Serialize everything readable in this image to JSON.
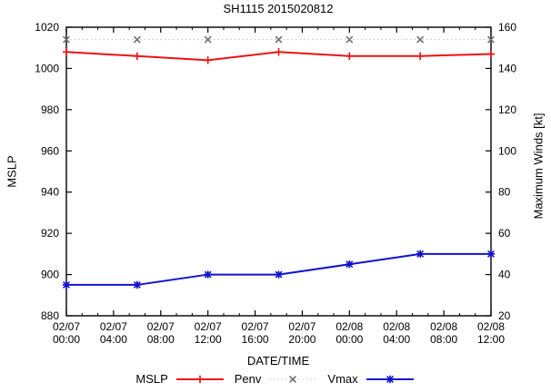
{
  "chart_data": {
    "type": "line",
    "title": "SH1115 2015020812",
    "xlabel": "DATE/TIME",
    "ylabel_left": "MSLP",
    "ylabel_right": "Maximum Winds [kt]",
    "grid": false,
    "legend_position": "bottom-center",
    "x_range_hours": [
      0,
      36
    ],
    "ylim_left": [
      880,
      1020
    ],
    "ylim_right": [
      20,
      160
    ],
    "yticks_left": [
      880,
      900,
      920,
      940,
      960,
      980,
      1000,
      1020
    ],
    "yticks_right": [
      20,
      40,
      60,
      80,
      100,
      120,
      140,
      160
    ],
    "x_ticks": {
      "hours": [
        0,
        4,
        8,
        12,
        16,
        20,
        24,
        28,
        32,
        36
      ],
      "labels": [
        [
          "02/07",
          "00:00"
        ],
        [
          "02/07",
          "04:00"
        ],
        [
          "02/07",
          "08:00"
        ],
        [
          "02/07",
          "12:00"
        ],
        [
          "02/07",
          "16:00"
        ],
        [
          "02/07",
          "20:00"
        ],
        [
          "02/08",
          "00:00"
        ],
        [
          "02/08",
          "04:00"
        ],
        [
          "02/08",
          "08:00"
        ],
        [
          "02/08",
          "12:00"
        ]
      ],
      "minor_per_interval": 2
    },
    "x_labels_points": [
      "02/07 00:00",
      "02/07 06:00",
      "02/07 12:00",
      "02/07 18:00",
      "02/08 00:00",
      "02/08 06:00",
      "02/08 12:00"
    ],
    "series": [
      {
        "name": "MSLP",
        "axis": "left",
        "color": "#ee1111",
        "marker_color": "#ee1111",
        "marker": "plus",
        "line": "solid",
        "x_hours": [
          0,
          6,
          12,
          18,
          24,
          30,
          36
        ],
        "values": [
          1008,
          1006,
          1004,
          1008,
          1006,
          1006,
          1007
        ]
      },
      {
        "name": "Penv",
        "axis": "left",
        "color": "#c0c0c0",
        "marker_color": "#707070",
        "marker": "cross",
        "line": "dotted",
        "x_hours": [
          0,
          6,
          12,
          18,
          24,
          30,
          36
        ],
        "values": [
          1014,
          1014,
          1014,
          1014,
          1014,
          1014,
          1014
        ]
      },
      {
        "name": "Vmax",
        "axis": "right",
        "color": "#1111cc",
        "marker_color": "#1111cc",
        "marker": "asterisk",
        "line": "solid",
        "x_hours": [
          0,
          6,
          12,
          18,
          24,
          30,
          36
        ],
        "values": [
          35,
          35,
          40,
          40,
          45,
          50,
          50
        ]
      }
    ],
    "colors": {
      "axis": "#000000",
      "background": "#ffffff"
    }
  }
}
